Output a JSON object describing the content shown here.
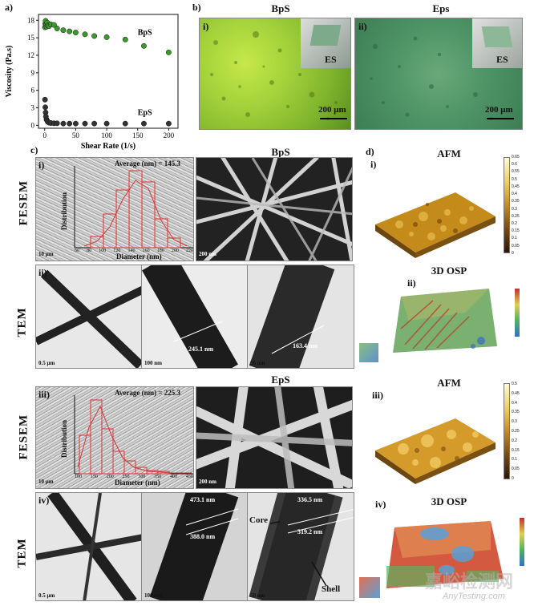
{
  "panel_a": {
    "tag": "a)",
    "chart_data": {
      "type": "scatter",
      "xlabel": "Shear Rate (1/s)",
      "ylabel": "Viscosity (Pa.s)",
      "xlim": [
        -10,
        215
      ],
      "ylim": [
        -0.5,
        19
      ],
      "xticks": [
        0,
        50,
        100,
        150,
        200
      ],
      "yticks": [
        0,
        3,
        6,
        9,
        12,
        15,
        18
      ],
      "series": [
        {
          "name": "BpS",
          "color": "#3a9a2a",
          "x": [
            0.5,
            1,
            1.5,
            2,
            3,
            4,
            5,
            7,
            10,
            15,
            20,
            30,
            40,
            50,
            65,
            80,
            100,
            130,
            160,
            200
          ],
          "y": [
            16.8,
            17.4,
            17.9,
            17.2,
            16.9,
            17.6,
            17.1,
            17.0,
            17.3,
            17.2,
            16.6,
            16.3,
            16.1,
            15.9,
            15.6,
            15.3,
            15.1,
            14.7,
            13.6,
            12.5
          ]
        },
        {
          "name": "EpS",
          "color": "#333333",
          "x": [
            0.5,
            1,
            1.5,
            2,
            3,
            4,
            5,
            7,
            10,
            15,
            20,
            30,
            40,
            50,
            65,
            80,
            100,
            130,
            160,
            200
          ],
          "y": [
            4.4,
            3.1,
            2.2,
            1.5,
            1.0,
            0.8,
            0.6,
            0.45,
            0.4,
            0.35,
            0.35,
            0.3,
            0.3,
            0.3,
            0.3,
            0.3,
            0.3,
            0.3,
            0.3,
            0.3
          ]
        }
      ]
    }
  },
  "panel_b": {
    "tag": "b)",
    "left_title": "BpS",
    "right_title": "Eps",
    "left_sub": "i)",
    "right_sub": "ii)",
    "inset_label": "ES",
    "scale": "200 μm"
  },
  "panel_c": {
    "tag": "c)",
    "bps_title": "BpS",
    "eps_title": "EpS",
    "fesem_label": "FESEM",
    "tem_label": "TEM",
    "sub_i": "i)",
    "sub_ii": "ii)",
    "sub_iii": "iii)",
    "sub_iv": "iv)",
    "bps_avg": "Average (nm) = 145.3",
    "eps_avg": "Average (nm) = 225.3",
    "hist_ylabel": "Distribution",
    "hist_xlabel": "Diameter (nm)",
    "bps_hist_ticks": [
      "60",
      "80",
      "100",
      "120",
      "140",
      "160",
      "180",
      "200",
      "220"
    ],
    "eps_hist_ticks": [
      "100",
      "150",
      "200",
      "250",
      "300",
      "350",
      "400",
      "450"
    ],
    "fesem_scale_left": "10 μm",
    "fesem_scale_right": "200 nm",
    "tem_scale_1": "0.5 μm",
    "tem_scale_2": "100 nm",
    "tem_scale_3": "50 nm",
    "m_245": "245.1 nm",
    "m_163": "163.4 nm",
    "m_473": "473.1 nm",
    "m_388": "388.0 nm",
    "m_336": "336.5 nm",
    "m_319": "319.2 nm",
    "core": "Core",
    "shell": "Shell"
  },
  "panel_d": {
    "tag": "d)",
    "afm": "AFM",
    "osp": "3D OSP",
    "sub_i": "i)",
    "sub_ii": "ii)",
    "sub_iii": "iii)",
    "sub_iv": "iv)",
    "afm1_ticks": [
      "0.65",
      "0.6",
      "0.55",
      "0.5",
      "0.45",
      "0.4",
      "0.35",
      "0.3",
      "0.25",
      "0.2",
      "0.15",
      "0.1",
      "0.05",
      "0"
    ],
    "afm2_ticks": [
      "0.5",
      "0.45",
      "0.4",
      "0.35",
      "0.3",
      "0.25",
      "0.2",
      "0.15",
      "0.1",
      "0.05",
      "0"
    ]
  },
  "watermark": {
    "cn": "嘉峪检测网",
    "en": "AnyTesting.com"
  }
}
